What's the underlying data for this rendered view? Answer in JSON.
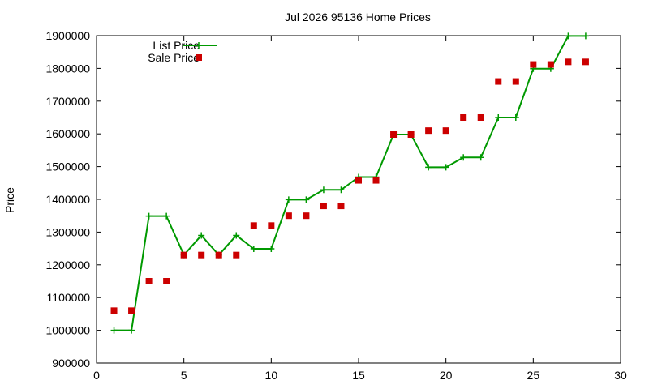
{
  "chart_data": {
    "type": "line",
    "title": "Jul 2026 95136 Home Prices",
    "xlabel": "",
    "ylabel": "Price",
    "xlim": [
      0,
      30
    ],
    "ylim": [
      900000,
      1900000
    ],
    "x_ticks": [
      0,
      5,
      10,
      15,
      20,
      25,
      30
    ],
    "y_ticks": [
      900000,
      1000000,
      1100000,
      1200000,
      1300000,
      1400000,
      1500000,
      1600000,
      1700000,
      1800000,
      1900000
    ],
    "x_tick_labels": [
      "0",
      "5",
      "10",
      "15",
      "20",
      "25",
      "30"
    ],
    "y_tick_labels": [
      "900000",
      "1000000",
      "1100000",
      "1200000",
      "1300000",
      "1400000",
      "1500000",
      "1600000",
      "1700000",
      "1800000",
      "1900000"
    ],
    "grid": false,
    "legend": "top-left",
    "series": [
      {
        "name": "List Price",
        "style": "line+cross",
        "color": "#009900",
        "x": [
          1,
          2,
          3,
          4,
          5,
          6,
          7,
          8,
          9,
          10,
          11,
          12,
          13,
          14,
          15,
          16,
          17,
          18,
          19,
          20,
          21,
          22,
          23,
          24,
          25,
          26,
          27,
          28
        ],
        "values": [
          1000000,
          1000000,
          1349000,
          1349000,
          1230000,
          1290000,
          1230000,
          1290000,
          1249000,
          1249000,
          1399000,
          1399000,
          1429000,
          1429000,
          1468000,
          1468000,
          1598000,
          1598000,
          1498000,
          1498000,
          1528000,
          1528000,
          1650000,
          1650000,
          1799000,
          1799000,
          1899000,
          1899000
        ]
      },
      {
        "name": "Sale Price",
        "style": "square",
        "color": "#cc0000",
        "x": [
          1,
          2,
          3,
          4,
          5,
          6,
          7,
          8,
          9,
          10,
          11,
          12,
          13,
          14,
          15,
          16,
          17,
          18,
          19,
          20,
          21,
          22,
          23,
          24,
          25,
          26,
          27,
          28
        ],
        "values": [
          1060000,
          1060000,
          1150000,
          1150000,
          1230000,
          1230000,
          1230000,
          1230000,
          1320000,
          1320000,
          1350000,
          1350000,
          1380000,
          1380000,
          1458000,
          1458000,
          1598000,
          1598000,
          1610000,
          1610000,
          1650000,
          1650000,
          1760000,
          1760000,
          1812000,
          1812000,
          1820000,
          1820000
        ]
      }
    ]
  }
}
